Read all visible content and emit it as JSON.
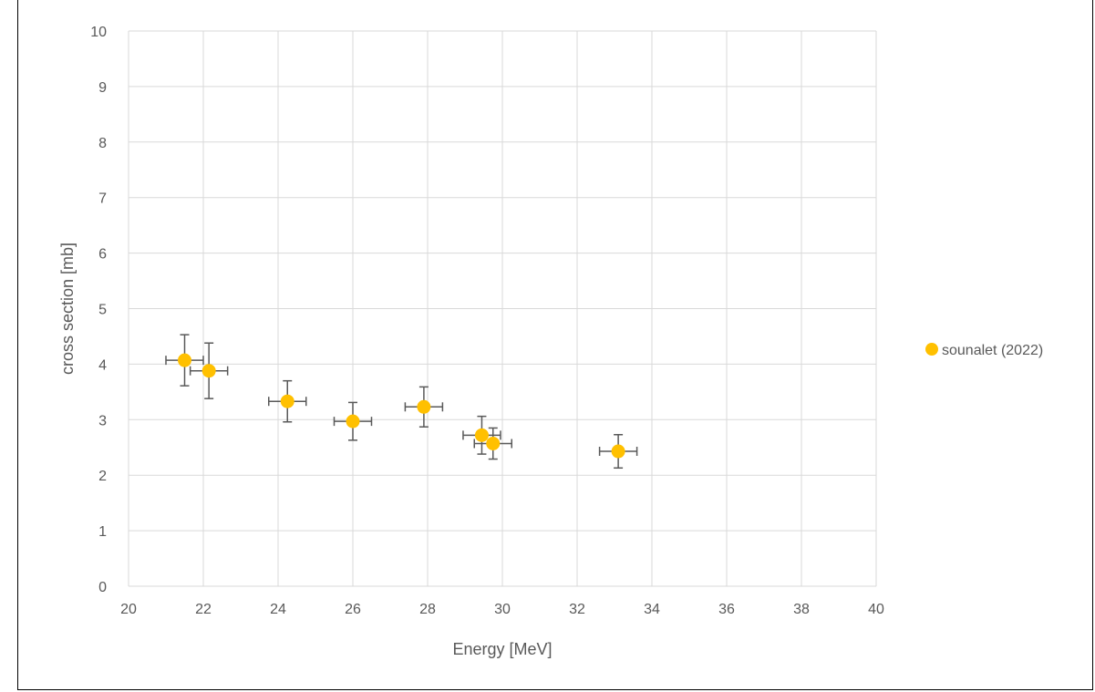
{
  "chart_data": {
    "type": "scatter",
    "title": "",
    "xlabel": "Energy [MeV]",
    "ylabel": "cross section [mb]",
    "xlim": [
      20,
      40
    ],
    "ylim": [
      0,
      10
    ],
    "x_ticks": [
      "20",
      "22",
      "24",
      "26",
      "28",
      "30",
      "32",
      "34",
      "36",
      "38",
      "40"
    ],
    "y_ticks": [
      "0",
      "1",
      "2",
      "3",
      "4",
      "5",
      "6",
      "7",
      "8",
      "9",
      "10"
    ],
    "grid": true,
    "legend_position": "right",
    "series": [
      {
        "name": "sounalet (2022)",
        "color": "#FFC000",
        "points": [
          {
            "x": 21.5,
            "y": 4.07,
            "xerr": 0.5,
            "yerr": 0.46
          },
          {
            "x": 22.15,
            "y": 3.88,
            "xerr": 0.5,
            "yerr": 0.5
          },
          {
            "x": 24.25,
            "y": 3.33,
            "xerr": 0.5,
            "yerr": 0.37
          },
          {
            "x": 26.0,
            "y": 2.97,
            "xerr": 0.5,
            "yerr": 0.34
          },
          {
            "x": 27.9,
            "y": 3.23,
            "xerr": 0.5,
            "yerr": 0.36
          },
          {
            "x": 29.45,
            "y": 2.72,
            "xerr": 0.5,
            "yerr": 0.34
          },
          {
            "x": 29.75,
            "y": 2.57,
            "xerr": 0.5,
            "yerr": 0.28
          },
          {
            "x": 33.1,
            "y": 2.43,
            "xerr": 0.5,
            "yerr": 0.3
          }
        ]
      }
    ]
  }
}
